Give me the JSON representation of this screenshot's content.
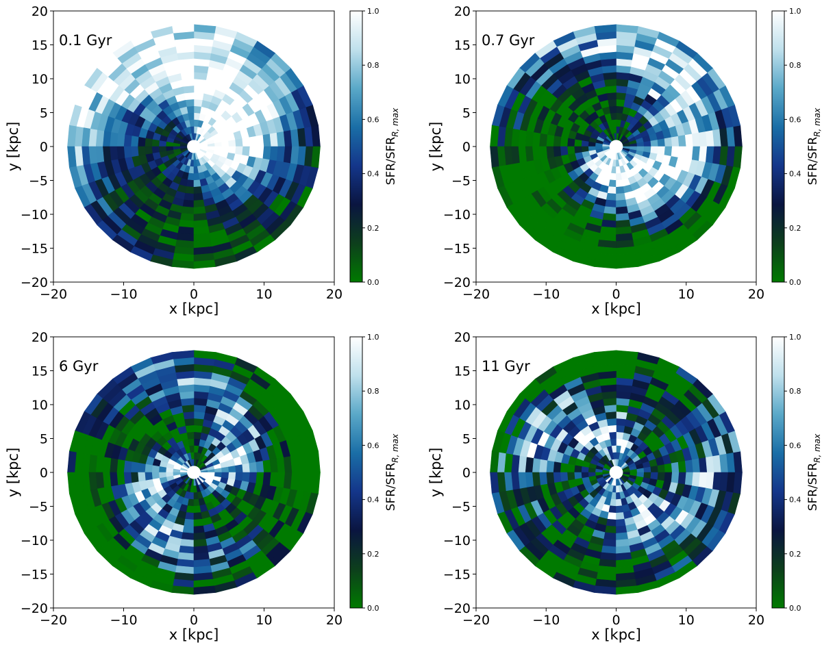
{
  "figure": {
    "colorbar_label": "SFR/SFR",
    "colorbar_label_sub": "R, max",
    "colormap_colors": [
      "#007a00",
      "#0d3f1c",
      "#0a1540",
      "#14368a",
      "#1a6ea6",
      "#5aa8c8",
      "#bfe0ec",
      "#ffffff"
    ]
  },
  "chart_data": [
    {
      "type": "heatmap",
      "title": "0.1 Gyr",
      "xlabel": "x [kpc]",
      "ylabel": "y [kpc]",
      "xlim": [
        -20,
        20
      ],
      "ylim": [
        -20,
        20
      ],
      "xticks": [
        "−20",
        "−10",
        "0",
        "10",
        "20"
      ],
      "yticks": [
        "−20",
        "−15",
        "−10",
        "−5",
        "0",
        "5",
        "10",
        "15",
        "20"
      ],
      "colorbar_range": [
        0,
        1
      ],
      "colorbar_ticks": [
        "0.0",
        "0.2",
        "0.4",
        "0.6",
        "0.8",
        "1.0"
      ],
      "inner_radius_kpc": 1,
      "outer_radius_kpc": 18,
      "ring_width_kpc": 1,
      "azimuthal_bins": 36,
      "pattern": {
        "base": 0.6,
        "spiral": 0.45,
        "arms": 1,
        "pitch": 0.14,
        "radial": -0.012,
        "phase": 0.3,
        "noise": 0.22,
        "seed": 11
      }
    },
    {
      "type": "heatmap",
      "title": "0.7 Gyr",
      "xlabel": "x [kpc]",
      "ylabel": "y [kpc]",
      "xlim": [
        -20,
        20
      ],
      "ylim": [
        -20,
        20
      ],
      "xticks": [
        "−20",
        "−10",
        "0",
        "10",
        "20"
      ],
      "yticks": [
        "−20",
        "−15",
        "−10",
        "−5",
        "0",
        "5",
        "10",
        "15",
        "20"
      ],
      "colorbar_range": [
        0,
        1
      ],
      "colorbar_ticks": [
        "0.0",
        "0.2",
        "0.4",
        "0.6",
        "0.8",
        "1.0"
      ],
      "inner_radius_kpc": 1,
      "outer_radius_kpc": 18,
      "ring_width_kpc": 1,
      "azimuthal_bins": 36,
      "pattern": {
        "base": 0.45,
        "spiral": 0.5,
        "arms": 1,
        "pitch": 0.22,
        "radial": -0.018,
        "phase": 2.2,
        "noise": 0.3,
        "seed": 23
      }
    },
    {
      "type": "heatmap",
      "title": "6 Gyr",
      "xlabel": "x [kpc]",
      "ylabel": "y [kpc]",
      "xlim": [
        -20,
        20
      ],
      "ylim": [
        -20,
        20
      ],
      "xticks": [
        "−20",
        "−10",
        "0",
        "10",
        "20"
      ],
      "yticks": [
        "−20",
        "−15",
        "−10",
        "−5",
        "0",
        "5",
        "10",
        "15",
        "20"
      ],
      "colorbar_range": [
        0,
        1
      ],
      "colorbar_ticks": [
        "0.0",
        "0.2",
        "0.4",
        "0.6",
        "0.8",
        "1.0"
      ],
      "inner_radius_kpc": 1,
      "outer_radius_kpc": 18,
      "ring_width_kpc": 1,
      "azimuthal_bins": 36,
      "pattern": {
        "base": 0.35,
        "spiral": 0.35,
        "arms": 2,
        "pitch": 0.3,
        "radial": -0.025,
        "phase": 1.0,
        "noise": 0.35,
        "seed": 37
      }
    },
    {
      "type": "heatmap",
      "title": "11 Gyr",
      "xlabel": "x [kpc]",
      "ylabel": "y [kpc]",
      "xlim": [
        -20,
        20
      ],
      "ylim": [
        -20,
        20
      ],
      "xticks": [
        "−20",
        "−10",
        "0",
        "10",
        "20"
      ],
      "yticks": [
        "−20",
        "−15",
        "−10",
        "−5",
        "0",
        "5",
        "10",
        "15",
        "20"
      ],
      "colorbar_range": [
        0,
        1
      ],
      "colorbar_ticks": [
        "0.0",
        "0.2",
        "0.4",
        "0.6",
        "0.8",
        "1.0"
      ],
      "inner_radius_kpc": 1,
      "outer_radius_kpc": 18,
      "ring_width_kpc": 1,
      "azimuthal_bins": 36,
      "pattern": {
        "base": 0.42,
        "spiral": 0.3,
        "arms": 2,
        "pitch": 0.25,
        "radial": -0.012,
        "phase": 4.0,
        "noise": 0.4,
        "seed": 53
      }
    }
  ]
}
